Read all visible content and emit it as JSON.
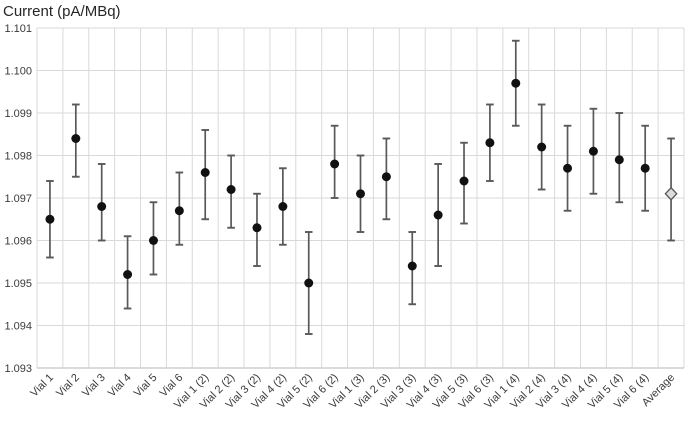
{
  "colors": {
    "background": "#ffffff",
    "marker": "#111111",
    "error_bar": "#595959",
    "gridline": "#d9d9d9",
    "axis_line": "#cfcfcf",
    "tick_label": "#3a3a3a",
    "title": "#262626",
    "average_marker_fill": "#dcdcdc"
  },
  "chart_data": {
    "type": "scatter",
    "title": "Current (pA/MBq)",
    "xlabel": "",
    "ylabel": "Current (pA/MBq)",
    "ylim": [
      1.093,
      1.101
    ],
    "ytick_step": 0.001,
    "ytick_decimals": 3,
    "grid": true,
    "legend": "none",
    "marker_style": "filled circle with error bars; Average shown as gray diamond",
    "categories": [
      "Vial 1",
      "Vial 2",
      "Vial 3",
      "Vial 4",
      "Vial 5",
      "Vial 6",
      "Vial 1 (2)",
      "Vial 2 (2)",
      "Vial 3 (2)",
      "Vial 4 (2)",
      "Vial 5 (2)",
      "Vial 6 (2)",
      "Vial 1 (3)",
      "Vial 2 (3)",
      "Vial 3 (3)",
      "Vial 4 (3)",
      "Vial 5 (3)",
      "Vial 6 (3)",
      "Vial 1 (4)",
      "Vial 2 (4)",
      "Vial 3 (4)",
      "Vial 4 (4)",
      "Vial 5 (4)",
      "Vial 6 (4)",
      "Average"
    ],
    "points": [
      {
        "label": "Vial 1",
        "y": 1.0965,
        "lo": 1.0956,
        "hi": 1.0974,
        "marker": "circle"
      },
      {
        "label": "Vial 2",
        "y": 1.0984,
        "lo": 1.0975,
        "hi": 1.0992,
        "marker": "circle"
      },
      {
        "label": "Vial 3",
        "y": 1.0968,
        "lo": 1.096,
        "hi": 1.0978,
        "marker": "circle"
      },
      {
        "label": "Vial 4",
        "y": 1.0952,
        "lo": 1.0944,
        "hi": 1.0961,
        "marker": "circle"
      },
      {
        "label": "Vial 5",
        "y": 1.096,
        "lo": 1.0952,
        "hi": 1.0969,
        "marker": "circle"
      },
      {
        "label": "Vial 6",
        "y": 1.0967,
        "lo": 1.0959,
        "hi": 1.0976,
        "marker": "circle"
      },
      {
        "label": "Vial 1 (2)",
        "y": 1.0976,
        "lo": 1.0965,
        "hi": 1.0986,
        "marker": "circle"
      },
      {
        "label": "Vial 2 (2)",
        "y": 1.0972,
        "lo": 1.0963,
        "hi": 1.098,
        "marker": "circle"
      },
      {
        "label": "Vial 3 (2)",
        "y": 1.0963,
        "lo": 1.0954,
        "hi": 1.0971,
        "marker": "circle"
      },
      {
        "label": "Vial 4 (2)",
        "y": 1.0968,
        "lo": 1.0959,
        "hi": 1.0977,
        "marker": "circle"
      },
      {
        "label": "Vial 5 (2)",
        "y": 1.095,
        "lo": 1.0938,
        "hi": 1.0962,
        "marker": "circle"
      },
      {
        "label": "Vial 6 (2)",
        "y": 1.0978,
        "lo": 1.097,
        "hi": 1.0987,
        "marker": "circle"
      },
      {
        "label": "Vial 1 (3)",
        "y": 1.0971,
        "lo": 1.0962,
        "hi": 1.098,
        "marker": "circle"
      },
      {
        "label": "Vial 2 (3)",
        "y": 1.0975,
        "lo": 1.0965,
        "hi": 1.0984,
        "marker": "circle"
      },
      {
        "label": "Vial 3 (3)",
        "y": 1.0954,
        "lo": 1.0945,
        "hi": 1.0962,
        "marker": "circle"
      },
      {
        "label": "Vial 4 (3)",
        "y": 1.0966,
        "lo": 1.0954,
        "hi": 1.0978,
        "marker": "circle"
      },
      {
        "label": "Vial 5 (3)",
        "y": 1.0974,
        "lo": 1.0964,
        "hi": 1.0983,
        "marker": "circle"
      },
      {
        "label": "Vial 6 (3)",
        "y": 1.0983,
        "lo": 1.0974,
        "hi": 1.0992,
        "marker": "circle"
      },
      {
        "label": "Vial 1 (4)",
        "y": 1.0997,
        "lo": 1.0987,
        "hi": 1.1007,
        "marker": "circle"
      },
      {
        "label": "Vial 2 (4)",
        "y": 1.0982,
        "lo": 1.0972,
        "hi": 1.0992,
        "marker": "circle"
      },
      {
        "label": "Vial 3 (4)",
        "y": 1.0977,
        "lo": 1.0967,
        "hi": 1.0987,
        "marker": "circle"
      },
      {
        "label": "Vial 4 (4)",
        "y": 1.0981,
        "lo": 1.0971,
        "hi": 1.0991,
        "marker": "circle"
      },
      {
        "label": "Vial 5 (4)",
        "y": 1.0979,
        "lo": 1.0969,
        "hi": 1.099,
        "marker": "circle"
      },
      {
        "label": "Vial 6 (4)",
        "y": 1.0977,
        "lo": 1.0967,
        "hi": 1.0987,
        "marker": "circle"
      },
      {
        "label": "Average",
        "y": 1.0971,
        "lo": 1.096,
        "hi": 1.0984,
        "marker": "diamond"
      }
    ]
  }
}
